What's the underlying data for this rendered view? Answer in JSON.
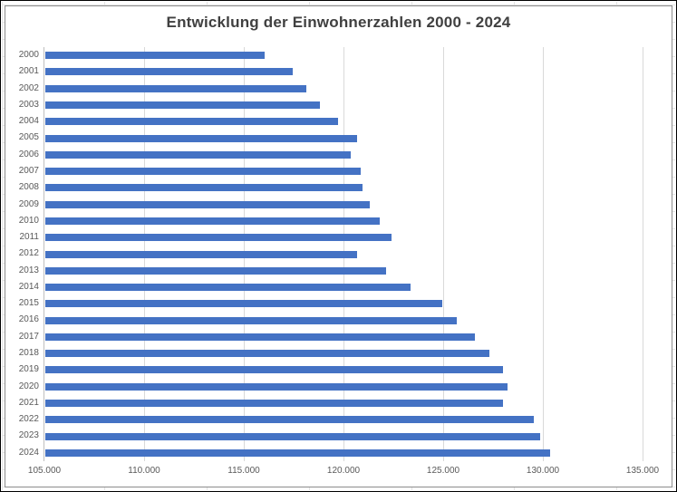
{
  "chart_data": {
    "type": "bar",
    "orientation": "horizontal",
    "title": "Entwicklung der Einwohnerzahlen 2000 - 2024",
    "categories": [
      "2000",
      "2001",
      "2002",
      "2003",
      "2004",
      "2005",
      "2006",
      "2007",
      "2008",
      "2009",
      "2010",
      "2011",
      "2012",
      "2013",
      "2014",
      "2015",
      "2016",
      "2017",
      "2018",
      "2019",
      "2020",
      "2021",
      "2022",
      "2023",
      "2024"
    ],
    "values": [
      116000,
      117400,
      118100,
      118750,
      119700,
      120650,
      120300,
      120800,
      120900,
      121250,
      121750,
      122350,
      120650,
      122100,
      123300,
      124900,
      125650,
      126550,
      127250,
      127950,
      128200,
      127950,
      129500,
      129800,
      130300
    ],
    "xlim": [
      105000,
      135000
    ],
    "x_tick_values": [
      105000,
      110000,
      115000,
      120000,
      125000,
      130000,
      135000
    ],
    "x_tick_labels": [
      "105.000",
      "110.000",
      "115.000",
      "120.000",
      "125.000",
      "130.000",
      "135.000"
    ],
    "grid": true,
    "legend": "none",
    "colors": {
      "bar": "#4472C4",
      "gridline": "#d9d9d9",
      "axis_line": "#bfbfbf",
      "title_text": "#404040",
      "label_text": "#595959",
      "chart_border": "#8c8c8c",
      "sheet_grid": "#e4e4e4",
      "outer_border": "#000000"
    }
  }
}
